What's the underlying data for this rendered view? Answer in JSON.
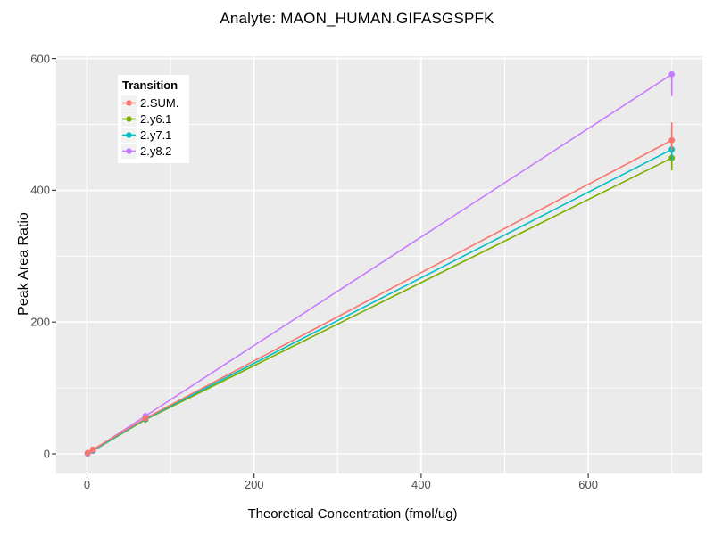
{
  "chart": {
    "title": "Analyte: MAON_HUMAN.GIFASGSPFK"
  },
  "x_axis": {
    "label": "Theoretical Concentration (fmol/ug)",
    "ticks": [
      0,
      200,
      400,
      600
    ],
    "minor_ticks": [
      100,
      300,
      500,
      700
    ]
  },
  "y_axis": {
    "label": "Peak Area Ratio",
    "ticks": [
      0,
      200,
      400,
      600
    ],
    "minor_ticks": [
      100,
      300,
      500
    ]
  },
  "legend": {
    "title": "Transition",
    "entries": [
      {
        "label": "2.SUM.",
        "color": "#F8766D"
      },
      {
        "label": "2.y6.1",
        "color": "#7CAE00"
      },
      {
        "label": "2.y7.1",
        "color": "#00BFC4"
      },
      {
        "label": "2.y8.2",
        "color": "#C77CFF"
      }
    ]
  },
  "colors": {
    "panel_background": "#EBEBEB",
    "major_gridline": "#FFFFFF",
    "minor_gridline": "#FFFFFF",
    "tick_mark": "#333333",
    "tick_label": "#4D4D4D",
    "legend_key_background": "#F2F2F2",
    "text": "#000000"
  },
  "chart_data": {
    "type": "line",
    "title": "Analyte: MAON_HUMAN.GIFASGSPFK",
    "xlabel": "Theoretical Concentration (fmol/ug)",
    "ylabel": "Peak Area Ratio",
    "x": [
      0.7,
      7,
      70,
      700
    ],
    "series": [
      {
        "name": "2.SUM.",
        "color": "#F8766D",
        "values": [
          1.5,
          6.5,
          54,
          476
        ],
        "error_bars": [
          null,
          null,
          [
            50,
            58
          ],
          [
            460,
            503
          ]
        ],
        "draw_order": 4
      },
      {
        "name": "2.y6.1",
        "color": "#7CAE00",
        "values": [
          0.5,
          4.5,
          52,
          449
        ],
        "error_bars": [
          null,
          null,
          null,
          [
            430,
            490
          ]
        ],
        "draw_order": 1
      },
      {
        "name": "2.y7.1",
        "color": "#00BFC4",
        "values": [
          0.5,
          4.8,
          53,
          462
        ],
        "error_bars": [
          null,
          null,
          null,
          [
            445,
            478
          ]
        ],
        "draw_order": 2
      },
      {
        "name": "2.y8.2",
        "color": "#C77CFF",
        "values": [
          0.6,
          5.5,
          57.5,
          576
        ],
        "error_bars": [
          null,
          null,
          [
            53,
            62
          ],
          [
            543,
            577
          ]
        ],
        "draw_order": 3
      }
    ],
    "xlim": [
      -37,
      737
    ],
    "ylim": [
      -26,
      603
    ],
    "x_ticks": [
      0,
      200,
      400,
      600
    ],
    "y_ticks": [
      0,
      200,
      400,
      600
    ],
    "grid": true,
    "legend_position": "inset top-left",
    "marker": "circle",
    "error_bars_shown": true
  }
}
